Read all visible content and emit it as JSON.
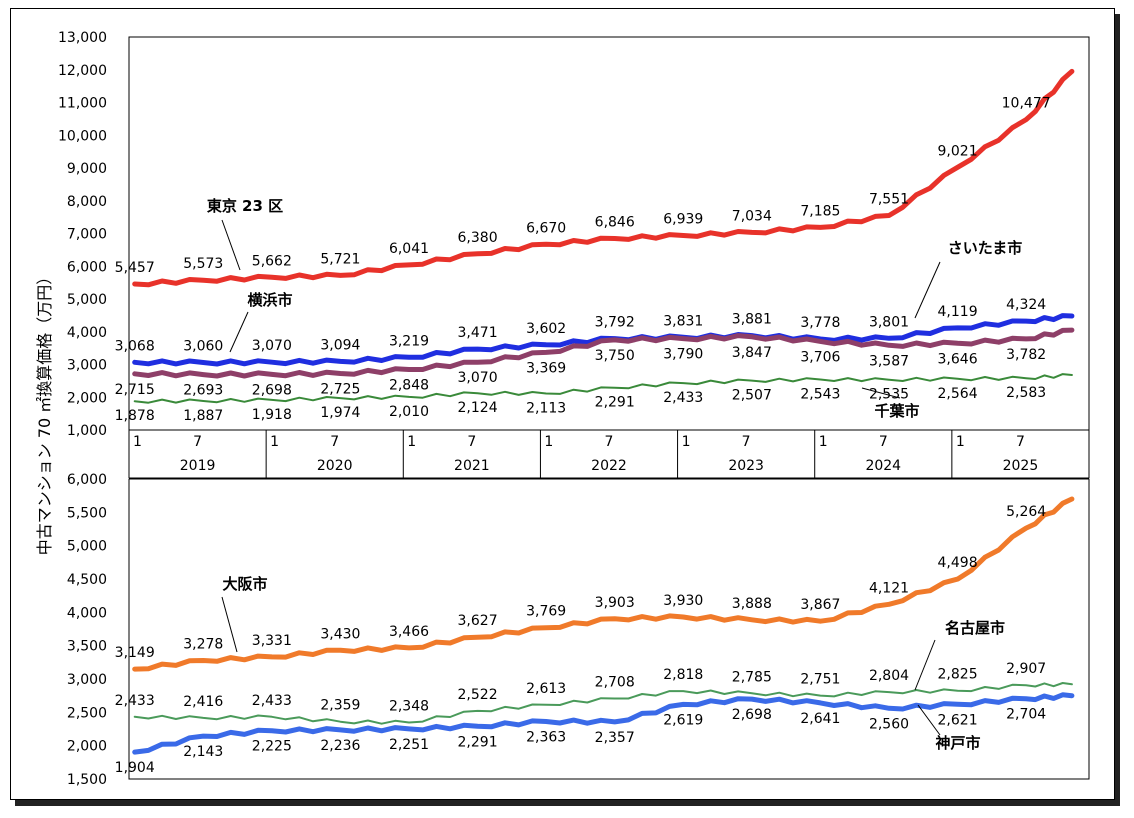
{
  "ylabel": "中古マンション 70 ㎡換算価格（万円）",
  "x_axis": {
    "month_labels": [
      "1",
      "7",
      "1",
      "7",
      "1",
      "7",
      "1",
      "7",
      "1",
      "7",
      "1",
      "7",
      "1",
      "7"
    ],
    "years": [
      "2019",
      "2020",
      "2021",
      "2022",
      "2023",
      "2024",
      "2025"
    ]
  },
  "chart_data": [
    {
      "type": "line",
      "ylabel": "中古マンション 70 ㎡換算価格（万円）",
      "ylim": [
        1000,
        13000
      ],
      "yticks": [
        "1,000",
        "2,000",
        "3,000",
        "4,000",
        "5,000",
        "6,000",
        "7,000",
        "8,000",
        "9,000",
        "10,000",
        "11,000",
        "12,000",
        "13,000"
      ],
      "x": [
        "2019-01",
        "2019-07",
        "2020-01",
        "2020-07",
        "2021-01",
        "2021-07",
        "2022-01",
        "2022-07",
        "2023-01",
        "2023-07",
        "2024-01",
        "2024-07",
        "2025-01",
        "2025-07",
        "2025-11"
      ],
      "series": [
        {
          "name": "東京 23 区",
          "color": "#e8322a",
          "values": [
            5457,
            5573,
            5662,
            5721,
            6041,
            6380,
            6670,
            6846,
            6939,
            7034,
            7185,
            7551,
            9021,
            10477,
            11950
          ],
          "labels": [
            "5,457",
            "5,573",
            "5,662",
            "5,721",
            "6,041",
            "6,380",
            "6,670",
            "6,846",
            "6,939",
            "7,034",
            "7,185",
            "7,551",
            "9,021",
            "10,477",
            ""
          ]
        },
        {
          "name": "さいたま市",
          "color": "#1f2ee0",
          "values": [
            3068,
            3060,
            3070,
            3094,
            3219,
            3471,
            3602,
            3792,
            3831,
            3881,
            3778,
            3801,
            4119,
            4324,
            4480
          ],
          "labels": [
            "3,068",
            "3,060",
            "3,070",
            "3,094",
            "3,219",
            "3,471",
            "3,602",
            "3,792",
            "3,831",
            "3,881",
            "3,778",
            "3,801",
            "4,119",
            "4,324",
            ""
          ]
        },
        {
          "name": "横浜市",
          "color": "#8e3f68",
          "values": [
            2715,
            2693,
            2698,
            2725,
            2848,
            3070,
            3369,
            3750,
            3790,
            3847,
            3706,
            3587,
            3646,
            3782,
            4050
          ],
          "labels": [
            "2,715",
            "2,693",
            "2,698",
            "2,725",
            "2,848",
            "3,070",
            "3,369",
            "3,750",
            "3,790",
            "3,847",
            "3,706",
            "3,587",
            "3,646",
            "3,782",
            ""
          ]
        },
        {
          "name": "千葉市",
          "color": "#3a8a3a",
          "values": [
            1878,
            1887,
            1918,
            1974,
            2010,
            2124,
            2113,
            2291,
            2433,
            2507,
            2543,
            2535,
            2564,
            2583,
            2680
          ],
          "labels": [
            "1,878",
            "1,887",
            "1,918",
            "1,974",
            "2,010",
            "2,124",
            "2,113",
            "2,291",
            "2,433",
            "2,507",
            "2,543",
            "2,535",
            "2,564",
            "2,583",
            ""
          ]
        }
      ]
    },
    {
      "type": "line",
      "ylim": [
        1500,
        6000
      ],
      "yticks": [
        "1,500",
        "2,000",
        "2,500",
        "3,000",
        "3,500",
        "4,000",
        "4,500",
        "5,000",
        "5,500",
        "6,000"
      ],
      "x": [
        "2019-01",
        "2019-07",
        "2020-01",
        "2020-07",
        "2021-01",
        "2021-07",
        "2022-01",
        "2022-07",
        "2023-01",
        "2023-07",
        "2024-01",
        "2024-07",
        "2025-01",
        "2025-07",
        "2025-11"
      ],
      "series": [
        {
          "name": "大阪市",
          "color": "#f07a2a",
          "values": [
            3149,
            3278,
            3331,
            3430,
            3466,
            3627,
            3769,
            3903,
            3930,
            3888,
            3867,
            4121,
            4498,
            5264,
            5700
          ],
          "labels": [
            "3,149",
            "3,278",
            "3,331",
            "3,430",
            "3,466",
            "3,627",
            "3,769",
            "3,903",
            "3,930",
            "3,888",
            "3,867",
            "4,121",
            "4,498",
            "5,264",
            ""
          ]
        },
        {
          "name": "名古屋市",
          "color": "#4a9a5a",
          "values": [
            2433,
            2416,
            2433,
            2359,
            2348,
            2522,
            2613,
            2708,
            2818,
            2785,
            2751,
            2804,
            2825,
            2907,
            2920
          ],
          "labels": [
            "2,433",
            "2,416",
            "2,433",
            "2,359",
            "2,348",
            "2,522",
            "2,613",
            "2,708",
            "2,818",
            "2,785",
            "2,751",
            "2,804",
            "2,825",
            "2,907",
            ""
          ]
        },
        {
          "name": "神戸市",
          "color": "#3a6ae8",
          "values": [
            1904,
            2143,
            2225,
            2236,
            2251,
            2291,
            2363,
            2357,
            2619,
            2698,
            2641,
            2560,
            2621,
            2704,
            2750
          ],
          "labels": [
            "1,904",
            "2,143",
            "2,225",
            "2,236",
            "2,251",
            "2,291",
            "2,363",
            "2,357",
            "2,619",
            "2,698",
            "2,641",
            "2,560",
            "2,621",
            "2,704",
            ""
          ]
        }
      ]
    }
  ]
}
